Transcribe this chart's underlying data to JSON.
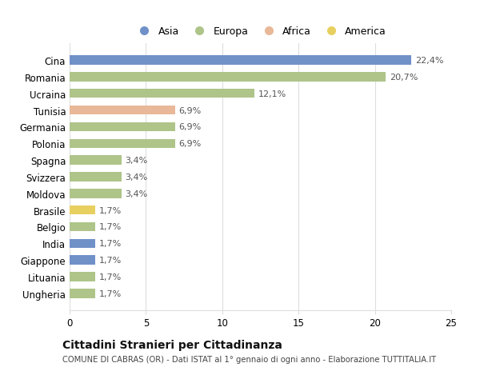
{
  "categories": [
    "Cina",
    "Romania",
    "Ucraina",
    "Tunisia",
    "Germania",
    "Polonia",
    "Spagna",
    "Svizzera",
    "Moldova",
    "Brasile",
    "Belgio",
    "India",
    "Giappone",
    "Lituania",
    "Ungheria"
  ],
  "values": [
    22.4,
    20.7,
    12.1,
    6.9,
    6.9,
    6.9,
    3.4,
    3.4,
    3.4,
    1.7,
    1.7,
    1.7,
    1.7,
    1.7,
    1.7
  ],
  "labels": [
    "22,4%",
    "20,7%",
    "12,1%",
    "6,9%",
    "6,9%",
    "6,9%",
    "3,4%",
    "3,4%",
    "3,4%",
    "1,7%",
    "1,7%",
    "1,7%",
    "1,7%",
    "1,7%",
    "1,7%"
  ],
  "continents": [
    "Asia",
    "Europa",
    "Europa",
    "Africa",
    "Europa",
    "Europa",
    "Europa",
    "Europa",
    "Europa",
    "America",
    "Europa",
    "Asia",
    "Asia",
    "Europa",
    "Europa"
  ],
  "continent_colors": {
    "Asia": "#7090c8",
    "Europa": "#aec489",
    "Africa": "#e8b898",
    "America": "#e8d060"
  },
  "legend_items": [
    {
      "label": "Asia",
      "color": "#7090c8"
    },
    {
      "label": "Europa",
      "color": "#aec489"
    },
    {
      "label": "Africa",
      "color": "#e8b898"
    },
    {
      "label": "America",
      "color": "#e8d060"
    }
  ],
  "xlim": [
    0,
    25
  ],
  "xticks": [
    0,
    5,
    10,
    15,
    20,
    25
  ],
  "title": "Cittadini Stranieri per Cittadinanza",
  "subtitle": "COMUNE DI CABRAS (OR) - Dati ISTAT al 1° gennaio di ogni anno - Elaborazione TUTTITALIA.IT",
  "background_color": "#ffffff",
  "grid_color": "#dddddd"
}
